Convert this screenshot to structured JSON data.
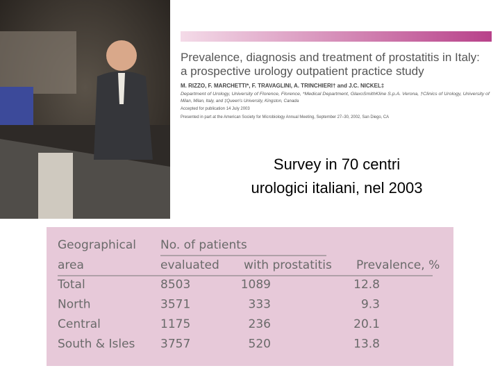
{
  "paper": {
    "title": [
      "Prevalence, diagnosis and treatment of prostatitis in Italy:",
      "a prospective urology outpatient practice study"
    ],
    "authors": "M. RIZZO, F. MARCHETTI*, F. TRAVAGLINI, A. TRINCHIERI† and J.C. NICKEL‡",
    "affiliation": [
      "Department of Urology, University of Florence, Florence, *Medical Department, GlaxoSmithKline S.p.A. Verona, †Clinics of Urology, University of",
      "Milan, Milan, Italy, and ‡Queen's University, Kingston, Canada"
    ],
    "accepted": "Accepted for publication 14 July 2003",
    "presented": "Presented in part at the American Society for Microbiology Annual Meeting, September 27–30, 2002, San Diego, CA"
  },
  "survey": [
    "Survey in 70 centri",
    "urologici italiani, nel 2003"
  ],
  "table": {
    "header": {
      "area": [
        "Geographical",
        "area"
      ],
      "patients": "No. of patients",
      "evaluated": "evaluated",
      "with_prostatitis": "with prostatitis",
      "prevalence": "Prevalence, %"
    },
    "rows": [
      [
        "Total",
        "8503",
        "1089",
        "12.8"
      ],
      [
        "North",
        "3571",
        "333",
        "9.3"
      ],
      [
        "Central",
        "1175",
        "236",
        "20.1"
      ],
      [
        "South & Isles",
        "3757",
        "520",
        "13.8"
      ]
    ]
  }
}
